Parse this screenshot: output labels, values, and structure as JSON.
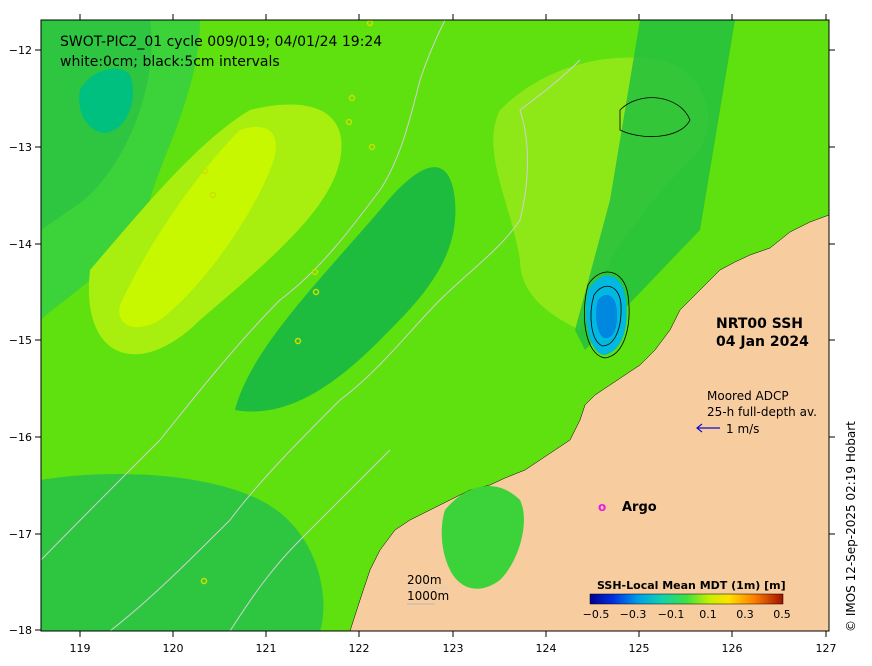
{
  "header": {
    "title_line1": "SWOT-PIC2_01 cycle 009/019; 04/01/24 19:24",
    "title_line2": "white:0cm; black:5cm intervals"
  },
  "product": {
    "name": "NRT00 SSH",
    "date": "04 Jan 2024"
  },
  "adcp": {
    "title": "Moored ADCP",
    "subtitle": "25-h full-depth av.",
    "scale_label": "1 m/s"
  },
  "argo": {
    "marker": "o",
    "label": "Argo",
    "color": "#e020e0"
  },
  "isobaths": {
    "shallow": "200m",
    "deep": "1000m"
  },
  "colorbar": {
    "title": "SSH-Local Mean MDT (1m) [m]",
    "ticks": [
      "−0.5",
      "−0.3",
      "−0.1",
      "0.1",
      "0.3",
      "0.5"
    ]
  },
  "axes": {
    "x_ticks": [
      "119",
      "120",
      "121",
      "122",
      "123",
      "124",
      "125",
      "126",
      "127"
    ],
    "y_ticks": [
      "−12",
      "−13",
      "−14",
      "−15",
      "−16",
      "−17",
      "−18"
    ]
  },
  "credit": "© IMOS 12-Sep-2025 02:19 Hobart",
  "colors": {
    "land": "#f7cda0",
    "ocean_base": "#5fe00f",
    "swath": "#25c040",
    "arrow": "#1010cc"
  }
}
